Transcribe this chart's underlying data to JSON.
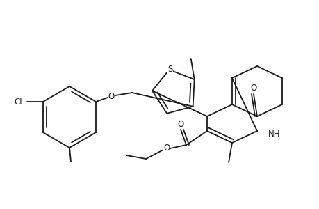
{
  "background_color": "#ffffff",
  "line_color": "#1a1a1a",
  "line_width": 1.3,
  "font_size": 8.5,
  "figsize": [
    4.6,
    3.0
  ],
  "dpi": 100,
  "atoms": {
    "Cl": "Cl",
    "S": "S",
    "O": "O",
    "NH": "NH"
  }
}
